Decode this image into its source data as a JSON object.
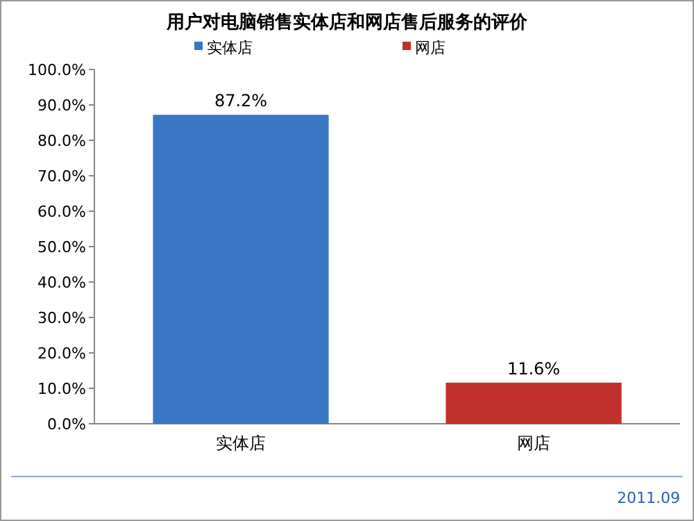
{
  "chart_data": {
    "type": "bar",
    "title": "用户对电脑销售实体店和网店售后服务的评价",
    "categories": [
      "实体店",
      "网店"
    ],
    "series": [
      {
        "name": "实体店",
        "color": "#3a76c4",
        "values": [
          87.2,
          null
        ],
        "value_labels": [
          "87.2%",
          null
        ]
      },
      {
        "name": "网店",
        "color": "#c0302c",
        "values": [
          null,
          11.6
        ],
        "value_labels": [
          null,
          "11.6%"
        ]
      }
    ],
    "ylim": [
      0,
      100
    ],
    "yticks": [
      {
        "value": 0,
        "label": "0.0%"
      },
      {
        "value": 10,
        "label": "10.0%"
      },
      {
        "value": 20,
        "label": "20.0%"
      },
      {
        "value": 30,
        "label": "30.0%"
      },
      {
        "value": 40,
        "label": "40.0%"
      },
      {
        "value": 50,
        "label": "50.0%"
      },
      {
        "value": 60,
        "label": "60.0%"
      },
      {
        "value": 70,
        "label": "70.0%"
      },
      {
        "value": 80,
        "label": "80.0%"
      },
      {
        "value": 90,
        "label": "90.0%"
      },
      {
        "value": 100,
        "label": "100.0%"
      }
    ],
    "legend": "top",
    "annotations": [
      "2011.09"
    ]
  }
}
